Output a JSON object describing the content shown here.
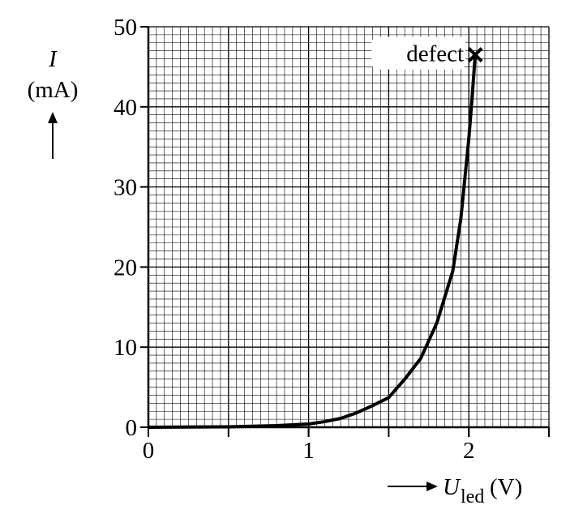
{
  "chart_data": {
    "type": "line",
    "x_label": {
      "symbol": "U",
      "subscript": "led",
      "unit": "(V)"
    },
    "y_label": {
      "symbol": "I",
      "unit": "(mA)"
    },
    "x": [
      0,
      0.5,
      0.8,
      1.0,
      1.1,
      1.2,
      1.3,
      1.4,
      1.5,
      1.6,
      1.7,
      1.8,
      1.9,
      1.95,
      1.98,
      2.0,
      2.02,
      2.04
    ],
    "series": [
      {
        "color": "#000000",
        "values": [
          0,
          0.05,
          0.2,
          0.4,
          0.7,
          1.1,
          1.8,
          2.7,
          3.7,
          6,
          8.6,
          13,
          19.5,
          26,
          32,
          36,
          41,
          46.5
        ]
      }
    ],
    "xlim": [
      0,
      2.5
    ],
    "ylim": [
      0,
      50
    ],
    "xticks": [
      0,
      1,
      2
    ],
    "yticks": [
      0,
      10,
      20,
      30,
      40,
      50
    ],
    "grid": true,
    "grid_minor": {
      "x": 0.05,
      "y": 1
    },
    "grid_major": {
      "x": 0.5,
      "y": 10
    },
    "annotation": {
      "text": "defect",
      "x": 2.04,
      "y": 46.5
    }
  }
}
